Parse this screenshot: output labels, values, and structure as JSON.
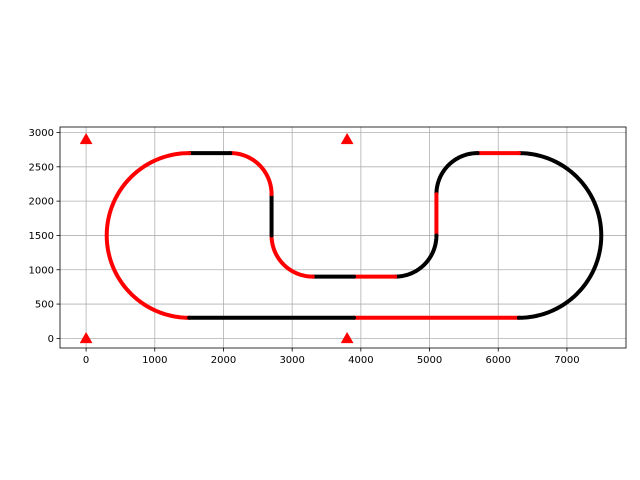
{
  "chart_data": {
    "type": "scatter",
    "title": "",
    "xlabel": "",
    "ylabel": "",
    "xlim": [
      -380,
      7860
    ],
    "ylim": [
      -140,
      3080
    ],
    "xticks": [
      0,
      1000,
      2000,
      3000,
      4000,
      5000,
      6000,
      7000
    ],
    "xtick_labels": [
      "0",
      "1000",
      "2000",
      "3000",
      "4000",
      "5000",
      "6000",
      "7000"
    ],
    "yticks": [
      0,
      500,
      1000,
      1500,
      2000,
      2500,
      3000
    ],
    "ytick_labels": [
      "0",
      "500",
      "1000",
      "1500",
      "2000",
      "2500",
      "3000"
    ],
    "grid": true,
    "track_segments": [
      {
        "kind": "line",
        "from": [
          3900,
          300
        ],
        "to": [
          6300,
          300
        ],
        "color": "#ff0000"
      },
      {
        "kind": "arc",
        "center": [
          6300,
          1500
        ],
        "radius": 1200,
        "start_deg": -90,
        "end_deg": 90,
        "color": "#000000"
      },
      {
        "kind": "line",
        "from": [
          6300,
          2700
        ],
        "to": [
          5700,
          2700
        ],
        "color": "#ff0000"
      },
      {
        "kind": "arc",
        "center": [
          5700,
          2100
        ],
        "radius": 600,
        "start_deg": 90,
        "end_deg": 180,
        "color": "#000000"
      },
      {
        "kind": "line",
        "from": [
          5100,
          2100
        ],
        "to": [
          5100,
          1500
        ],
        "color": "#ff0000"
      },
      {
        "kind": "arc",
        "center": [
          4500,
          1500
        ],
        "radius": 600,
        "start_deg": 0,
        "end_deg": -90,
        "color": "#000000"
      },
      {
        "kind": "line",
        "from": [
          4500,
          900
        ],
        "to": [
          3900,
          900
        ],
        "color": "#ff0000"
      },
      {
        "kind": "line",
        "from": [
          3900,
          900
        ],
        "to": [
          3300,
          900
        ],
        "color": "#000000"
      },
      {
        "kind": "arc",
        "center": [
          3300,
          1500
        ],
        "radius": 600,
        "start_deg": -90,
        "end_deg": -180,
        "color": "#ff0000"
      },
      {
        "kind": "line",
        "from": [
          2700,
          1500
        ],
        "to": [
          2700,
          2100
        ],
        "color": "#000000"
      },
      {
        "kind": "arc",
        "center": [
          2100,
          2100
        ],
        "radius": 600,
        "start_deg": 0,
        "end_deg": 90,
        "color": "#ff0000"
      },
      {
        "kind": "line",
        "from": [
          2100,
          2700
        ],
        "to": [
          1500,
          2700
        ],
        "color": "#000000"
      },
      {
        "kind": "arc",
        "center": [
          1500,
          1500
        ],
        "radius": 1200,
        "start_deg": 90,
        "end_deg": 270,
        "color": "#ff0000"
      },
      {
        "kind": "line",
        "from": [
          1500,
          300
        ],
        "to": [
          3900,
          300
        ],
        "color": "#000000"
      }
    ],
    "markers": [
      {
        "x": 0,
        "y": 0,
        "shape": "triangle",
        "color": "#ff0000"
      },
      {
        "x": 0,
        "y": 2900,
        "shape": "triangle",
        "color": "#ff0000"
      },
      {
        "x": 3800,
        "y": 0,
        "shape": "triangle",
        "color": "#ff0000"
      },
      {
        "x": 3800,
        "y": 2900,
        "shape": "triangle",
        "color": "#ff0000"
      }
    ]
  }
}
